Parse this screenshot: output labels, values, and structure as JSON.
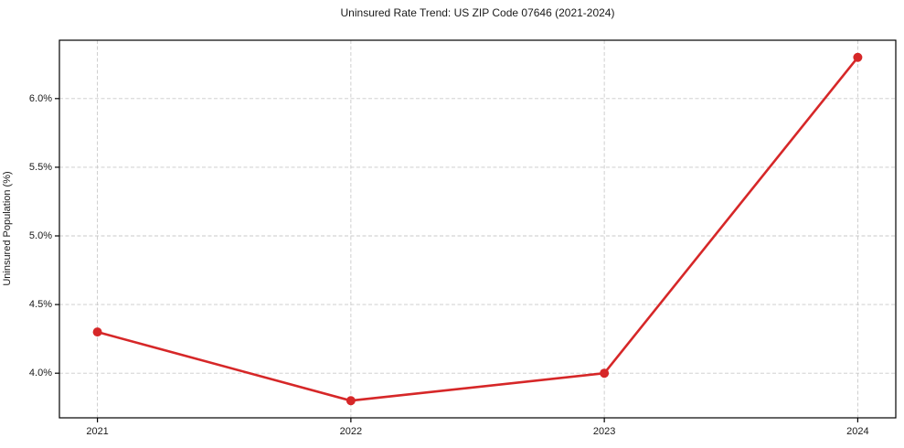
{
  "chart_data": {
    "type": "line",
    "title": "Uninsured Rate Trend: US ZIP Code 07646 (2021-2024)",
    "xlabel": "",
    "ylabel": "Uninsured Population (%)",
    "x": [
      2021,
      2022,
      2023,
      2024
    ],
    "values": [
      4.3,
      3.8,
      4.0,
      6.3
    ],
    "x_ticks": [
      2021,
      2022,
      2023,
      2024
    ],
    "x_tick_labels": [
      "2021",
      "2022",
      "2023",
      "2024"
    ],
    "y_ticks": [
      4.0,
      4.5,
      5.0,
      5.5,
      6.0
    ],
    "y_tick_labels": [
      "4.0%",
      "4.5%",
      "5.0%",
      "5.5%",
      "6.0%"
    ],
    "xlim": [
      2020.85,
      2024.15
    ],
    "ylim": [
      3.675,
      6.425
    ],
    "grid": true,
    "legend": "none",
    "line_color": "#d62728",
    "marker": "circle",
    "marker_color": "#d62728",
    "grid_color": "#c9c9c9",
    "axis_color": "#000000",
    "tick_color": "#000000",
    "text_color": "#1a1a1a",
    "background_color": "#ffffff"
  }
}
